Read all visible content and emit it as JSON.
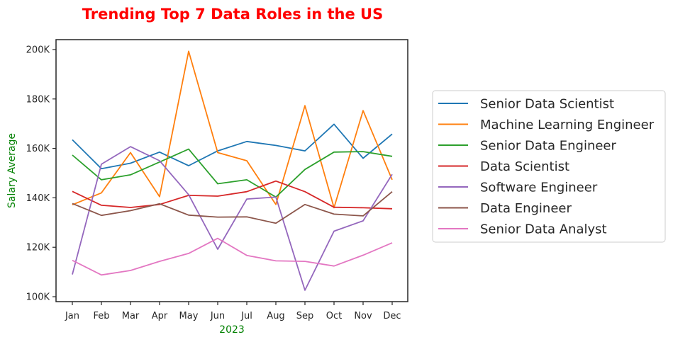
{
  "chart_data": {
    "type": "line",
    "title": "Trending Top 7 Data Roles in the US",
    "title_color": "#ff0000",
    "xlabel": "2023",
    "ylabel": "Salary Average",
    "axis_label_color": "#008000",
    "categories": [
      "Jan",
      "Feb",
      "Mar",
      "Apr",
      "May",
      "Jun",
      "Jul",
      "Aug",
      "Sep",
      "Oct",
      "Nov",
      "Dec"
    ],
    "ylim": [
      98000,
      204000
    ],
    "yticks": [
      100000,
      120000,
      140000,
      160000,
      180000,
      200000
    ],
    "ytick_labels": [
      "100K",
      "120K",
      "140K",
      "160K",
      "180K",
      "200K"
    ],
    "grid": false,
    "legend_position": "right",
    "series": [
      {
        "name": "Senior Data Scientist",
        "color": "#1f77b4",
        "values": [
          163500,
          151800,
          154000,
          158500,
          153000,
          159000,
          162800,
          161200,
          159000,
          169800,
          156000,
          165800
        ]
      },
      {
        "name": "Machine Learning Engineer",
        "color": "#ff7f0e",
        "values": [
          137200,
          142000,
          158300,
          140500,
          199300,
          158300,
          155000,
          137300,
          177300,
          136000,
          175300,
          147300
        ]
      },
      {
        "name": "Senior Data Engineer",
        "color": "#2ca02c",
        "values": [
          157300,
          147300,
          149300,
          154500,
          159700,
          145700,
          147300,
          140300,
          151500,
          158500,
          158700,
          156800
        ]
      },
      {
        "name": "Data Scientist",
        "color": "#d62728",
        "values": [
          142600,
          137000,
          136100,
          137300,
          141000,
          140700,
          142500,
          146800,
          142500,
          136200,
          136000,
          135600
        ]
      },
      {
        "name": "Software Engineer",
        "color": "#9467bd",
        "values": [
          109000,
          153600,
          160700,
          155000,
          141300,
          119200,
          139500,
          140300,
          102600,
          126500,
          130700,
          149500
        ]
      },
      {
        "name": "Data Engineer",
        "color": "#8c564b",
        "values": [
          137700,
          132900,
          134800,
          137600,
          133000,
          132200,
          132300,
          129700,
          137300,
          133400,
          132700,
          142500
        ]
      },
      {
        "name": "Senior Data Analyst",
        "color": "#e377c2",
        "values": [
          114700,
          108800,
          110600,
          114300,
          117500,
          123600,
          116700,
          114500,
          114300,
          112400,
          116800,
          121800
        ]
      }
    ]
  }
}
